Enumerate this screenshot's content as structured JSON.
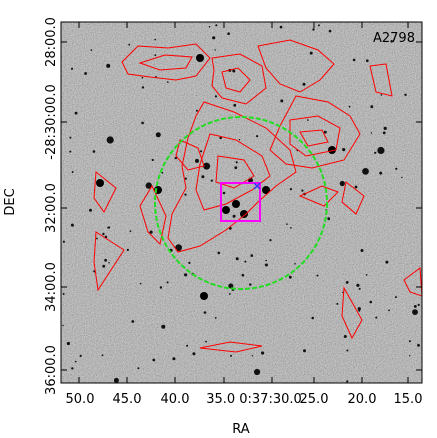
{
  "figure": {
    "label": "A2798",
    "xlabel": "RA",
    "ylabel": "DEC",
    "x_ticks": [
      "50.0",
      "45.0",
      "40.0",
      "35.0 0:37:30.0",
      "25.0",
      "20.0",
      "15.0"
    ],
    "y_ticks": [
      "28:00.0",
      "-28:30:00.0",
      "32:00.0",
      "34:00.0",
      "36:00.0"
    ],
    "colors": {
      "contour": "#ff0000",
      "circle": "#22dd22",
      "box": "#ff00ff",
      "marker": "#3333ff",
      "image_bg": "#b8b8b8"
    },
    "image_type": "greyscale optical sky image with red contour overlay"
  }
}
